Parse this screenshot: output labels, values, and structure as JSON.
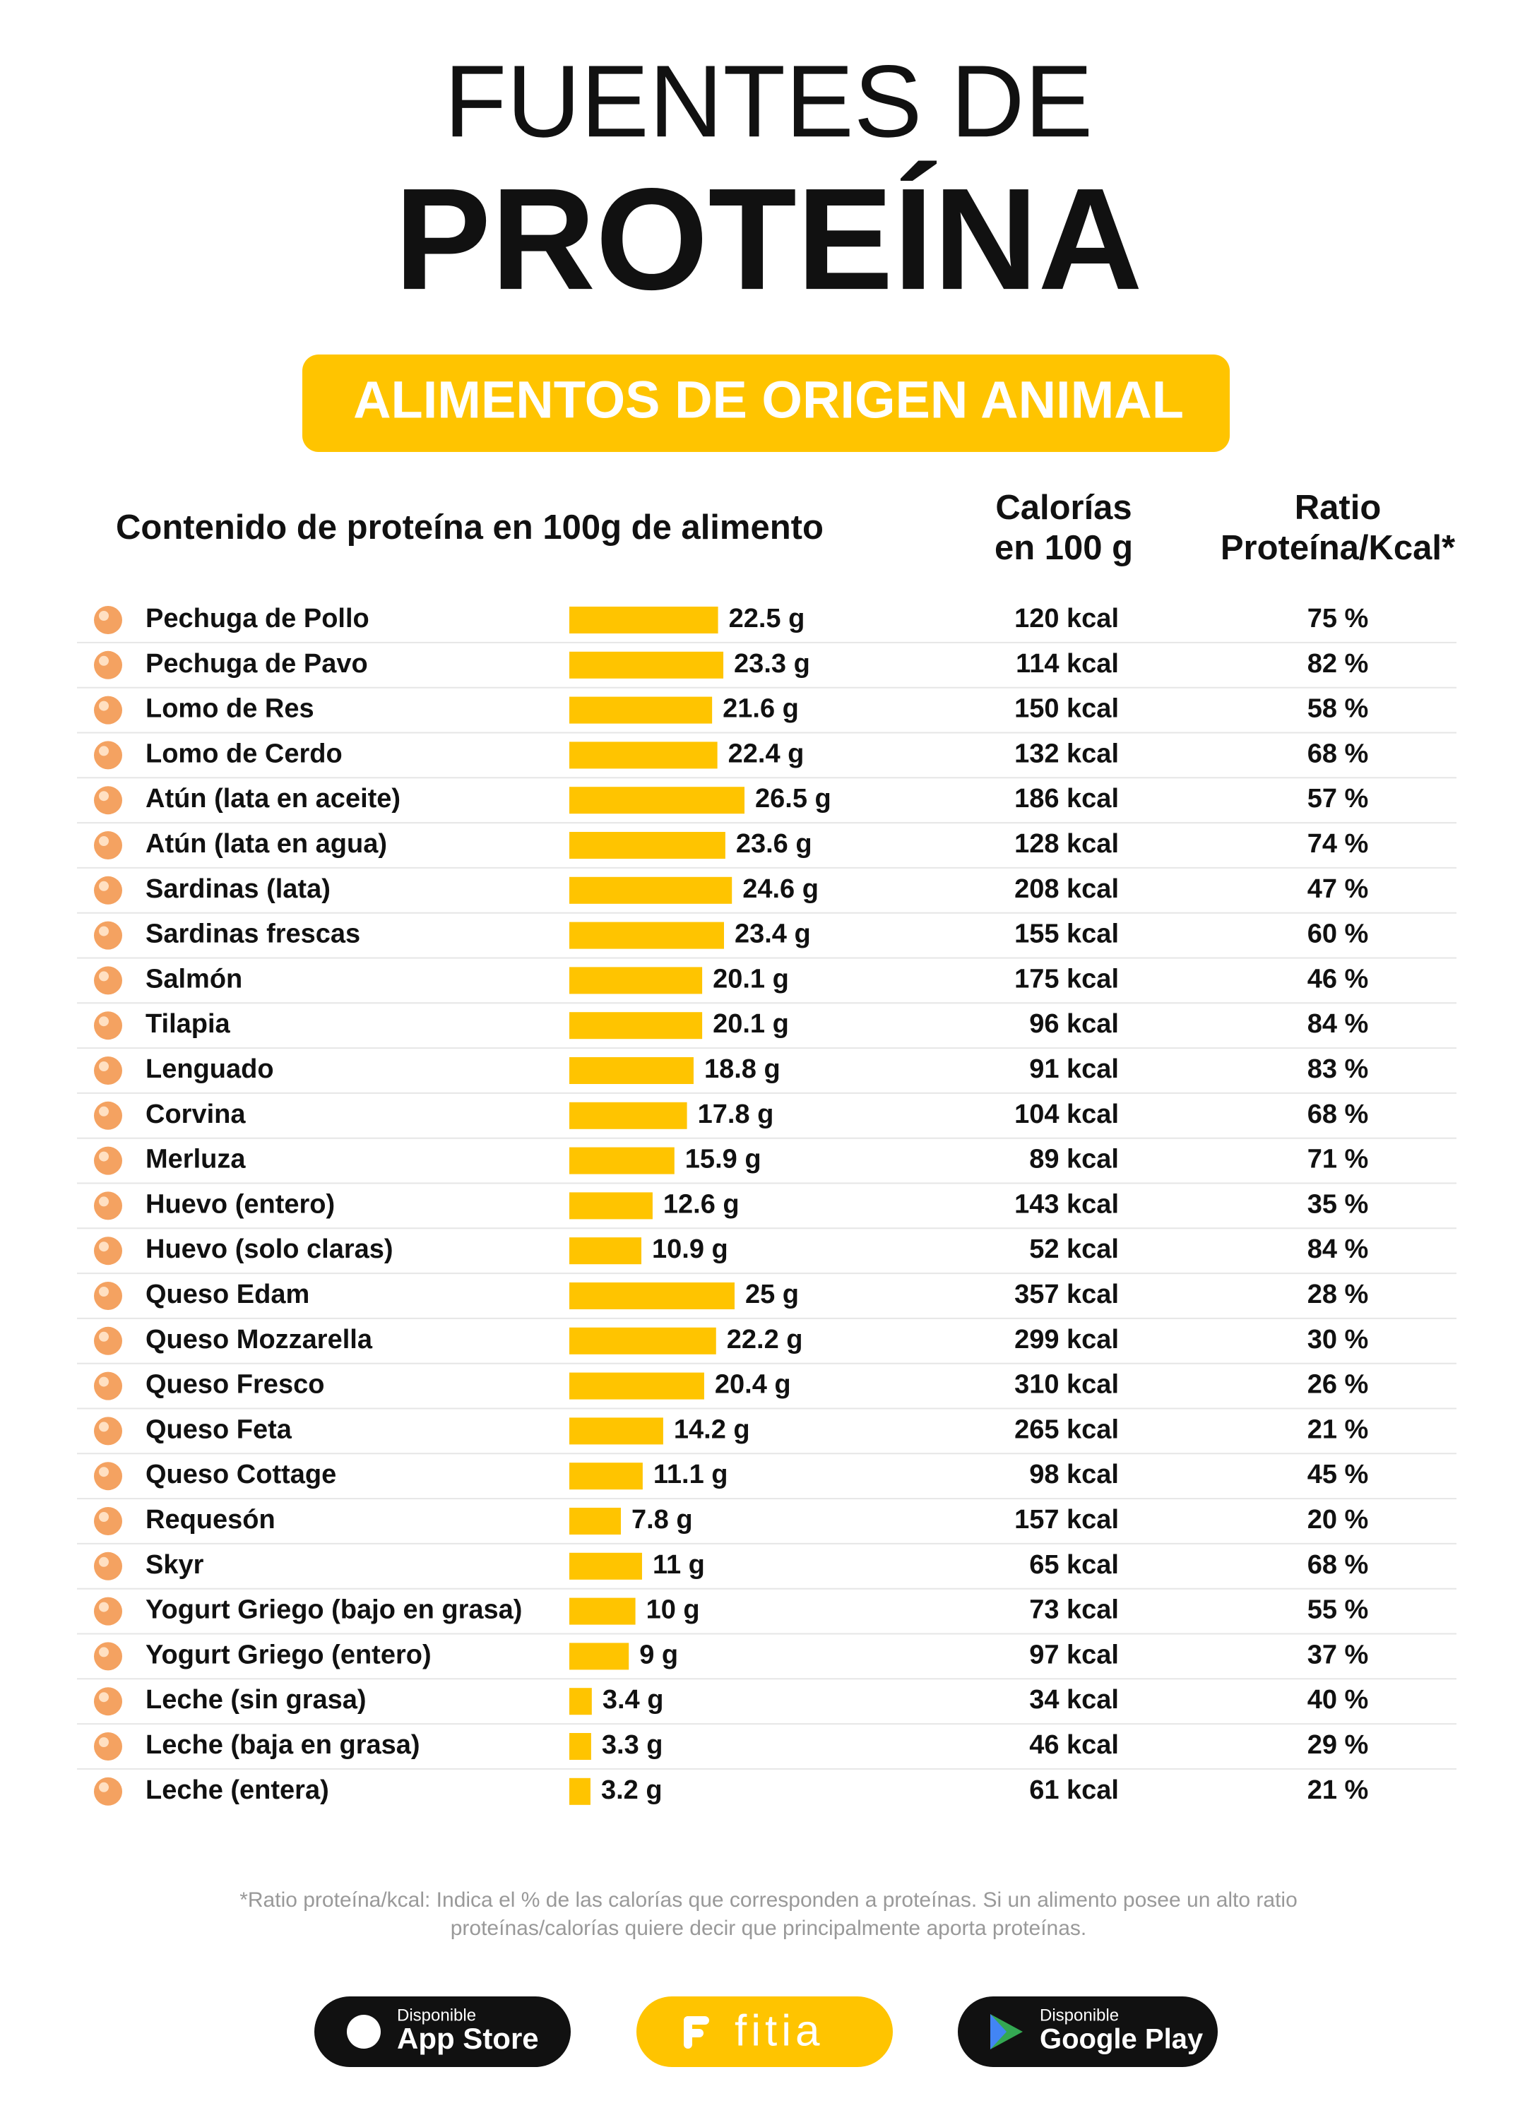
{
  "chart_data": {
    "type": "bar",
    "title": "FUENTES DE",
    "title2": "PROTEÍNA",
    "subtitle": "ALIMENTOS DE ORIGEN ANIMAL",
    "column_protein": "Contenido de proteína en 100g de alimento",
    "column_calories": [
      "Calorías",
      "en 100 g"
    ],
    "column_ratio": [
      "Ratio",
      "Proteína/Kcal*"
    ],
    "color": "#ffc400",
    "categories": [
      "Pechuga de Pollo",
      "Pechuga de Pavo",
      "Lomo de Res",
      "Lomo de Cerdo",
      "Atún (lata en aceite)",
      "Atún (lata en agua)",
      "Sardinas (lata)",
      "Sardinas frescas",
      "Salmón",
      "Tilapia",
      "Lenguado",
      "Corvina",
      "Merluza",
      "Huevo (entero)",
      "Huevo (solo claras)",
      "Queso Edam",
      "Queso Mozzarella",
      "Queso Fresco",
      "Queso Feta",
      "Queso Cottage",
      "Requesón",
      "Skyr",
      "Yogurt Griego (bajo en grasa)",
      "Yogurt Griego (entero)",
      "Leche (sin grasa)",
      "Leche (baja en grasa)",
      "Leche (entera)"
    ],
    "values": [
      22.5,
      23.3,
      21.6,
      22.4,
      26.5,
      23.6,
      24.6,
      23.4,
      20.1,
      20.1,
      18.8,
      17.8,
      15.9,
      12.6,
      10.9,
      25,
      22.2,
      20.4,
      14.2,
      11.1,
      7.8,
      11,
      10,
      9,
      3.4,
      3.3,
      3.2
    ],
    "value_labels": [
      "22.5 g",
      "23.3 g",
      "21.6 g",
      "22.4 g",
      "26.5 g",
      "23.6 g",
      "24.6 g",
      "23.4 g",
      "20.1 g",
      "20.1 g",
      "18.8 g",
      "17.8 g",
      "15.9 g",
      "12.6 g",
      "10.9 g",
      "25 g",
      "22.2 g",
      "20.4 g",
      "14.2 g",
      "11.1 g",
      "7.8 g",
      "11 g",
      "10 g",
      "9 g",
      "3.4 g",
      "3.3 g",
      "3.2 g"
    ],
    "calories": [
      "120 kcal",
      "114 kcal",
      "150 kcal",
      "132 kcal",
      "186 kcal",
      "128 kcal",
      "208 kcal",
      "155 kcal",
      "175 kcal",
      "96 kcal",
      "91 kcal",
      "104 kcal",
      "89 kcal",
      "143 kcal",
      "52 kcal",
      "357 kcal",
      "299 kcal",
      "310 kcal",
      "265 kcal",
      "98 kcal",
      "157 kcal",
      "65 kcal",
      "73 kcal",
      "97 kcal",
      "34 kcal",
      "46 kcal",
      "61 kcal"
    ],
    "ratio": [
      "75 %",
      "82 %",
      "58 %",
      "68 %",
      "57 %",
      "74 %",
      "47 %",
      "60 %",
      "46 %",
      "84 %",
      "83 %",
      "68 %",
      "71 %",
      "35 %",
      "84 %",
      "28 %",
      "30 %",
      "26 %",
      "21 %",
      "45 %",
      "20 %",
      "68 %",
      "55 %",
      "37 %",
      "40 %",
      "29 %",
      "21 %"
    ],
    "footnote": [
      "*Ratio proteína/kcal: Indica el % de las calorías que corresponden a proteínas. Si un alimento posee un alto ratio",
      "proteínas/calorías quiere decir que principalmente aporta proteínas."
    ],
    "footer": {
      "appstore_small": "Disponible",
      "appstore": "App Store",
      "brand": "fitia",
      "play_small": "Disponible",
      "play": "Google Play"
    }
  }
}
